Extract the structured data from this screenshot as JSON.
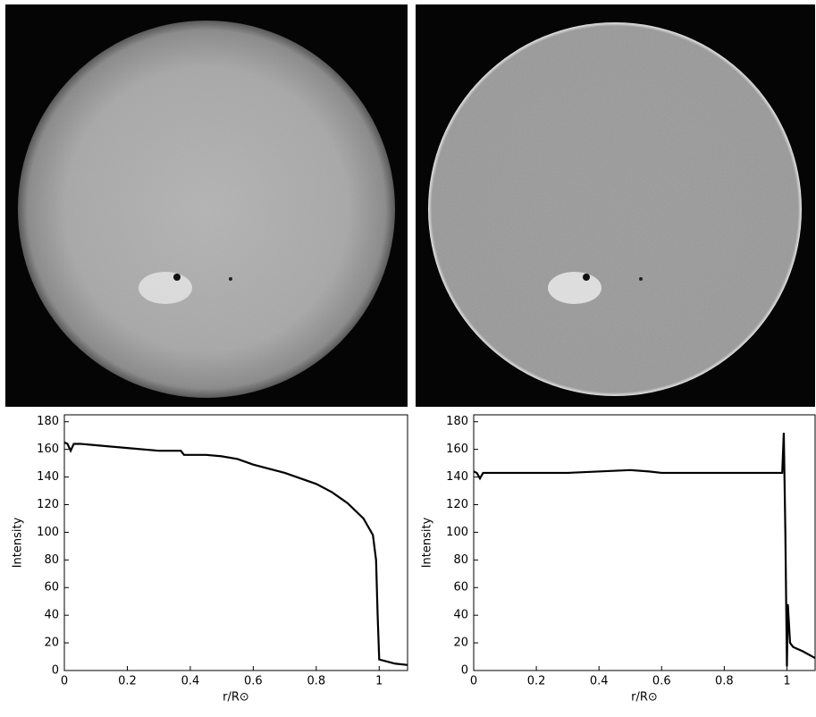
{
  "chart_data": [
    {
      "type": "line",
      "xlabel": "r/R⊙",
      "ylabel": "Intensity",
      "xlim": [
        0,
        1.09
      ],
      "ylim": [
        0,
        185
      ],
      "xticks": [
        0,
        0.2,
        0.4,
        0.6,
        0.8,
        1
      ],
      "yticks": [
        0,
        20,
        40,
        60,
        80,
        100,
        120,
        140,
        160,
        180
      ],
      "x": [
        0,
        0.01,
        0.02,
        0.03,
        0.05,
        0.1,
        0.2,
        0.3,
        0.37,
        0.38,
        0.45,
        0.5,
        0.55,
        0.6,
        0.7,
        0.8,
        0.85,
        0.9,
        0.95,
        0.98,
        0.99,
        0.995,
        1.0,
        1.05,
        1.09
      ],
      "series": [
        {
          "color": "#000000",
          "values": [
            165,
            164,
            159,
            164,
            164,
            163,
            161,
            159,
            159,
            156,
            156,
            155,
            153,
            149,
            143,
            135,
            129,
            121,
            110,
            98,
            80,
            40,
            8,
            5,
            4
          ]
        }
      ]
    },
    {
      "type": "line",
      "xlabel": "r/R⊙",
      "ylabel": "Intensity",
      "xlim": [
        0,
        1.09
      ],
      "ylim": [
        0,
        185
      ],
      "xticks": [
        0,
        0.2,
        0.4,
        0.6,
        0.8,
        1
      ],
      "yticks": [
        0,
        20,
        40,
        60,
        80,
        100,
        120,
        140,
        160,
        180
      ],
      "x": [
        0,
        0.01,
        0.02,
        0.03,
        0.1,
        0.3,
        0.5,
        0.56,
        0.6,
        0.9,
        0.985,
        0.99,
        0.995,
        1.0,
        1.003,
        1.01,
        1.02,
        1.05,
        1.09
      ],
      "series": [
        {
          "color": "#000000",
          "values": [
            144,
            143,
            139,
            143,
            143,
            143,
            145,
            144,
            143,
            143,
            143,
            172,
            100,
            3,
            48,
            20,
            17,
            14,
            9
          ]
        }
      ]
    }
  ]
}
